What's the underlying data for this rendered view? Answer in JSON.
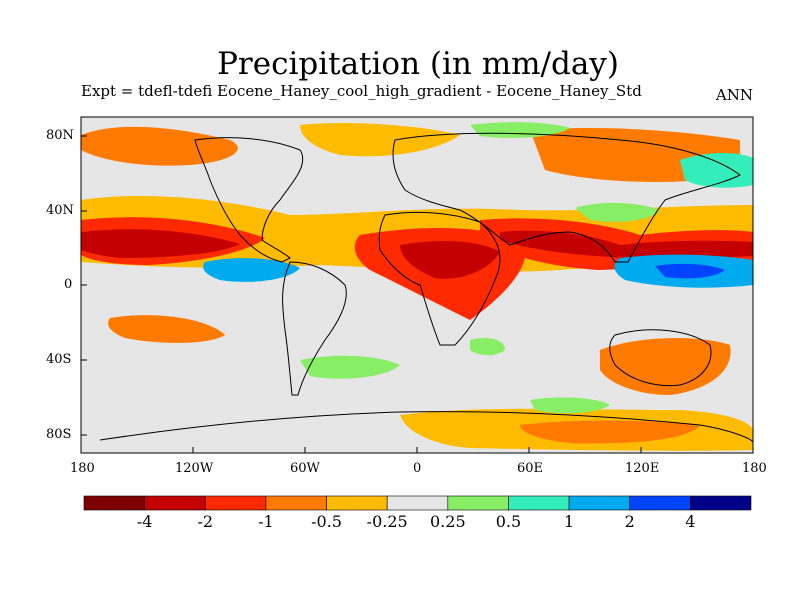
{
  "title": "Precipitation (in mm/day)",
  "subtitle": "Expt = tdefl-tdefi  Eocene_Haney_cool_high_gradient - Eocene_Haney_Std",
  "season": "ANN",
  "lat_labels": [
    "80N",
    "40N",
    "0",
    "40S",
    "80S"
  ],
  "lon_labels": [
    "180",
    "120W",
    "60W",
    "0",
    "60E",
    "120E",
    "180"
  ],
  "colorbar": {
    "colors": [
      "#7f0000",
      "#c40000",
      "#ff2a00",
      "#ff7a00",
      "#ffbb00",
      "#e6e6e6",
      "#88ee66",
      "#33eebb",
      "#00aaee",
      "#0044ff",
      "#000088"
    ],
    "labels": [
      "-4",
      "-2",
      "-1",
      "-0.5",
      "-0.25",
      "0.25",
      "0.5",
      "1",
      "2",
      "4"
    ]
  },
  "palette": {
    "dry_deep": "#7f0000",
    "dry_strong": "#c40000",
    "dry": "#ff2a00",
    "dry_mid": "#ff7a00",
    "dry_light": "#ffbb00",
    "neutral": "#e6e6e6",
    "wet_light": "#88ee66",
    "wet_mid": "#33eebb",
    "wet": "#00aaee",
    "wet_strong": "#0044ff"
  }
}
